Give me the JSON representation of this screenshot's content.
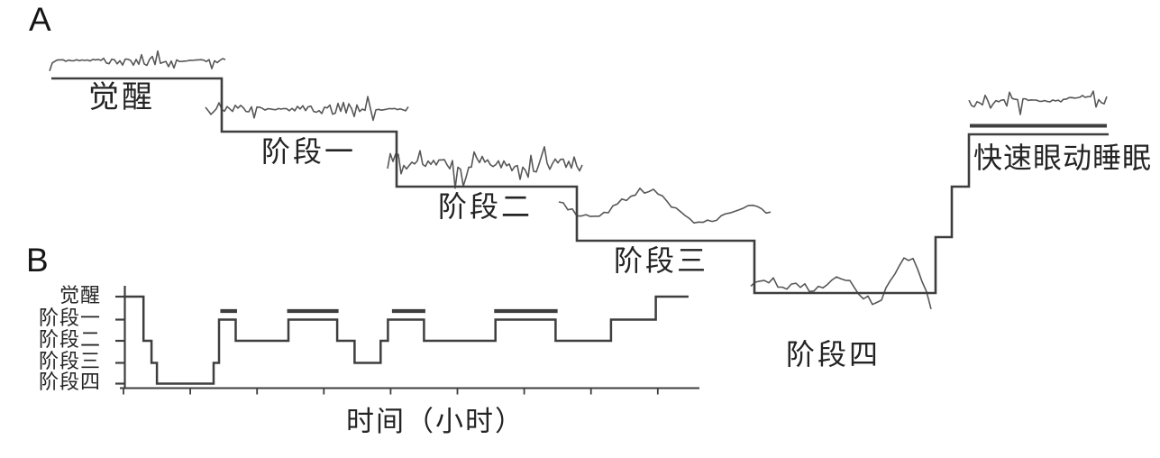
{
  "figure": {
    "panel_a_label": "A",
    "panel_b_label": "B",
    "colors": {
      "background": "#ffffff",
      "line": "#3e3e3e",
      "trace": "#575757",
      "text": "#242424"
    },
    "panel_a": {
      "description": "EEG traces for each sleep stage arranged on a descending staircase, rising again for REM sleep",
      "labels": {
        "wake": "觉醒",
        "stage1": "阶段一",
        "stage2": "阶段二",
        "stage3": "阶段三",
        "stage4": "阶段四",
        "rem": "快速眼动睡眠"
      }
    }
  },
  "chart_data": {
    "type": "line",
    "subtype": "hypnogram-step",
    "title": "",
    "xlabel": "时间（小时）",
    "ylabel": "",
    "y_categories": [
      "觉醒",
      "阶段一",
      "阶段二",
      "阶段三",
      "阶段四"
    ],
    "x_range_hours": [
      0,
      8
    ],
    "x_tick_interval_hours": 1,
    "grid": false,
    "legend": "none",
    "hypnogram_steps": [
      {
        "stage": "觉醒",
        "start": 0.0,
        "end": 0.3
      },
      {
        "stage": "阶段二",
        "start": 0.3,
        "end": 0.42
      },
      {
        "stage": "阶段三",
        "start": 0.42,
        "end": 0.5
      },
      {
        "stage": "阶段四",
        "start": 0.5,
        "end": 1.35
      },
      {
        "stage": "阶段三",
        "start": 1.35,
        "end": 1.43
      },
      {
        "stage": "阶段一",
        "start": 1.43,
        "end": 1.68,
        "rem": true
      },
      {
        "stage": "阶段二",
        "start": 1.68,
        "end": 2.47
      },
      {
        "stage": "阶段一",
        "start": 2.47,
        "end": 3.2,
        "rem": true
      },
      {
        "stage": "阶段二",
        "start": 3.2,
        "end": 3.46
      },
      {
        "stage": "阶段三",
        "start": 3.46,
        "end": 3.85
      },
      {
        "stage": "阶段二",
        "start": 3.85,
        "end": 3.96
      },
      {
        "stage": "阶段一",
        "start": 3.96,
        "end": 4.5,
        "rem": true
      },
      {
        "stage": "阶段二",
        "start": 4.5,
        "end": 5.57
      },
      {
        "stage": "阶段一",
        "start": 5.57,
        "end": 6.47,
        "rem": true
      },
      {
        "stage": "阶段二",
        "start": 6.47,
        "end": 7.3
      },
      {
        "stage": "阶段一",
        "start": 7.3,
        "end": 7.97
      },
      {
        "stage": "觉醒",
        "start": 7.97,
        "end": 8.46
      }
    ],
    "rem_periods_hours": [
      [
        1.45,
        1.7
      ],
      [
        2.45,
        3.22
      ],
      [
        4.02,
        4.52
      ],
      [
        5.55,
        6.5
      ]
    ]
  }
}
